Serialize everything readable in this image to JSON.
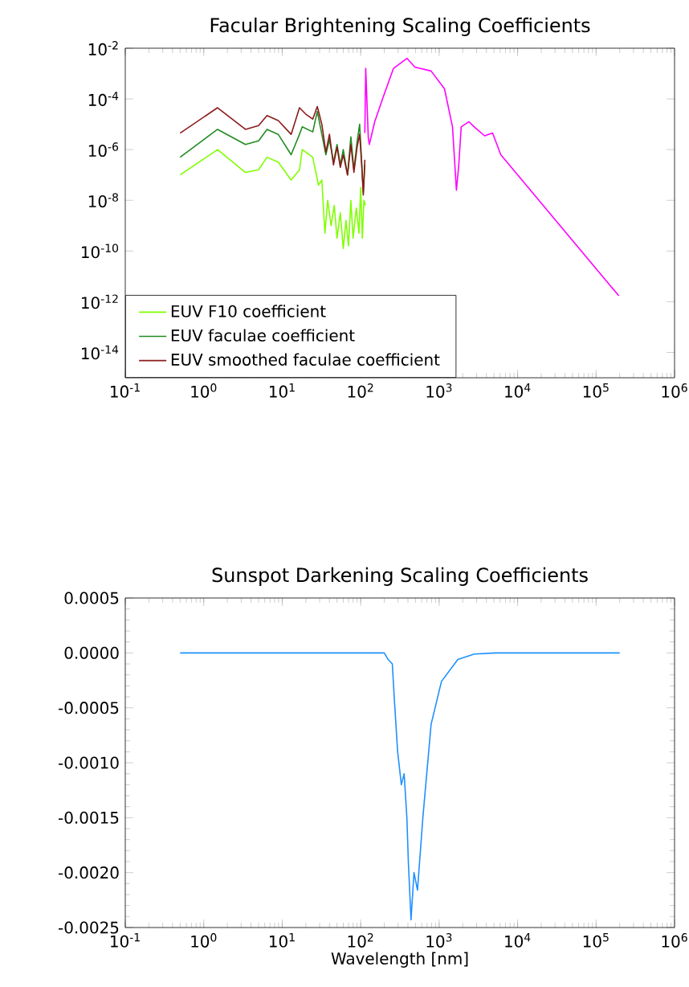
{
  "chart_data": [
    {
      "type": "line",
      "title": "Facular Brightening Scaling Coefficients",
      "log": "xy",
      "xlim": [
        0.1,
        1000000
      ],
      "ylim": [
        1e-15,
        0.01
      ],
      "xticks": [
        {
          "value": 0.1,
          "label": "10$^{-1}$"
        },
        {
          "value": 1,
          "label": "10$^{0}$"
        },
        {
          "value": 10,
          "label": "10$^{1}$"
        },
        {
          "value": 100,
          "label": "10$^{2}$"
        },
        {
          "value": 1000,
          "label": "10$^{3}$"
        },
        {
          "value": 10000,
          "label": "10$^{4}$"
        },
        {
          "value": 100000,
          "label": "10$^{5}$"
        },
        {
          "value": 1000000,
          "label": "10$^{6}$"
        }
      ],
      "yticks": [
        {
          "value": 0.01,
          "label": "10$^{-2}$"
        },
        {
          "value": 0.0001,
          "label": "10$^{-4}$"
        },
        {
          "value": 1e-06,
          "label": "10$^{-6}$"
        },
        {
          "value": 1e-08,
          "label": "10$^{-8}$"
        },
        {
          "value": 1e-10,
          "label": "10$^{-10}$"
        },
        {
          "value": 1e-12,
          "label": "10$^{-12}$"
        },
        {
          "value": 1e-14,
          "label": "10$^{-14}$"
        }
      ],
      "legend": "bottom left",
      "grid": false,
      "series": [
        {
          "name": "EUV F10 coefficient",
          "color": "#7fff00",
          "x": [
            0.5,
            1.5,
            3.4,
            5,
            6.4,
            8.9,
            13,
            16.6,
            18,
            24.5,
            29,
            32,
            35,
            38,
            42,
            46,
            50,
            55,
            60,
            65,
            70,
            75,
            80,
            88,
            95,
            100,
            105,
            110,
            115
          ],
          "values": [
            1e-07,
            1e-06,
            1.26e-07,
            1.6e-07,
            5e-07,
            3.2e-07,
            6.3e-08,
            1.6e-07,
            1e-06,
            5e-07,
            4e-08,
            6.3e-08,
            5e-10,
            1e-08,
            1e-09,
            6.3e-09,
            3.2e-10,
            3.2e-09,
            1.26e-10,
            1.6e-09,
            1.6e-10,
            1e-08,
            3.2e-10,
            5e-09,
            5e-10,
            3.2e-08,
            3.2e-10,
            1e-08,
            6.3e-09
          ]
        },
        {
          "name": "EUV faculae coefficient",
          "color": "#228b22",
          "x": [
            0.5,
            1.5,
            3.4,
            5,
            6.4,
            8.9,
            13,
            16.6,
            18,
            24.5,
            28,
            32,
            36,
            40,
            45,
            50,
            55,
            60,
            68,
            75,
            82,
            90,
            97,
            103,
            108,
            113
          ],
          "values": [
            5e-07,
            6.3e-06,
            1.6e-06,
            2.2e-06,
            6.3e-06,
            4e-06,
            6.3e-07,
            4e-06,
            7.9e-06,
            5e-06,
            3.2e-05,
            4e-06,
            6.3e-07,
            2.5e-06,
            3.2e-07,
            1.6e-06,
            2.5e-07,
            1e-06,
            1e-07,
            3.2e-06,
            1.6e-07,
            2e-06,
            1e-05,
            3.2e-07,
            2e-08,
            2.5e-07
          ]
        },
        {
          "name": "EUV smoothed faculae coefficient",
          "color": "#8b1a1a",
          "x": [
            0.5,
            1.5,
            3.4,
            5,
            6.4,
            8.9,
            13,
            16.6,
            20,
            24.5,
            28,
            32,
            36,
            40,
            45,
            50,
            55,
            60,
            68,
            75,
            82,
            90,
            97,
            103,
            108,
            113
          ],
          "values": [
            4.5e-06,
            4.5e-05,
            6.3e-06,
            8.9e-06,
            2.2e-05,
            1.4e-05,
            4e-06,
            4.5e-05,
            2.5e-05,
            1.6e-05,
            5e-05,
            1e-05,
            7.9e-07,
            4e-06,
            2.5e-07,
            1.26e-06,
            2e-07,
            6.3e-07,
            1e-07,
            1.6e-06,
            1.26e-07,
            1.26e-06,
            4e-06,
            2.5e-07,
            1.6e-08,
            4e-07
          ]
        },
        {
          "color": "#ff00ff",
          "x": [
            113,
            116,
            125,
            129,
            151,
            190,
            262,
            389,
            490,
            790,
            1170,
            1480,
            1660,
            1780,
            1910,
            2400,
            2800,
            3800,
            4800,
            6100,
            195000
          ],
          "values": [
            4.5e-06,
            0.0016,
            3e-06,
            1.6e-06,
            1.26e-05,
            0.0001,
            0.0016,
            0.004,
            0.0018,
            0.00126,
            0.00025,
            7.9e-06,
            2.5e-08,
            2.5e-07,
            7.9e-06,
            1.26e-05,
            7.9e-06,
            3.5e-06,
            4.5e-06,
            6.3e-07,
            1.7e-12
          ]
        }
      ]
    },
    {
      "type": "line",
      "title": "Sunspot Darkening Scaling Coefficients",
      "xlabel": "Wavelength [nm]",
      "log": "x",
      "xlim": [
        0.1,
        1000000
      ],
      "ylim": [
        -0.0025,
        0.0005
      ],
      "xticks": [
        {
          "value": 0.1,
          "label": "10$^{-1}$"
        },
        {
          "value": 1,
          "label": "10$^{0}$"
        },
        {
          "value": 10,
          "label": "10$^{1}$"
        },
        {
          "value": 100,
          "label": "10$^{2}$"
        },
        {
          "value": 1000,
          "label": "10$^{3}$"
        },
        {
          "value": 10000,
          "label": "10$^{4}$"
        },
        {
          "value": 100000,
          "label": "10$^{5}$"
        },
        {
          "value": 1000000,
          "label": "10$^{6}$"
        }
      ],
      "yticks": [
        {
          "value": 0.0005,
          "label": "0.0005"
        },
        {
          "value": 0,
          "label": "0.0000"
        },
        {
          "value": -0.0005,
          "label": "-0.0005"
        },
        {
          "value": -0.001,
          "label": "-0.0010"
        },
        {
          "value": -0.0015,
          "label": "-0.0015"
        },
        {
          "value": -0.002,
          "label": "-0.0020"
        },
        {
          "value": -0.0025,
          "label": "-0.0025"
        }
      ],
      "grid": false,
      "series": [
        {
          "color": "#1e90ff",
          "x": [
            0.5,
            200,
            224,
            253,
            270,
            296,
            330,
            358,
            388,
            405,
            438,
            478,
            530,
            620,
            790,
            1070,
            1730,
            2800,
            5200,
            200000
          ],
          "values": [
            0,
            0,
            -6e-05,
            -0.0001,
            -0.00045,
            -0.0009,
            -0.0012,
            -0.0011,
            -0.0015,
            -0.0019,
            -0.00243,
            -0.002,
            -0.00216,
            -0.0015,
            -0.00065,
            -0.00026,
            -6e-05,
            -1e-05,
            0,
            0
          ]
        }
      ]
    }
  ]
}
